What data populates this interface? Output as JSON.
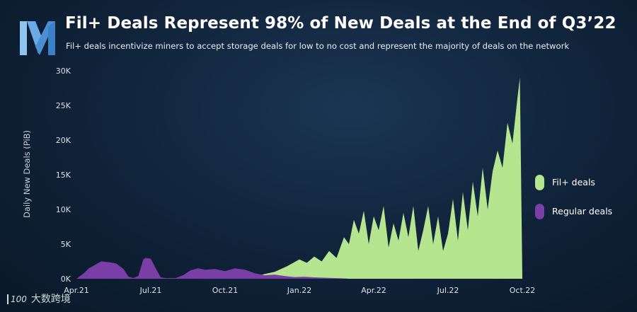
{
  "header": {
    "title": "Fil+ Deals Represent 98% of New Deals at the End of Q3’22",
    "subtitle": "Fil+ deals incentivize miners to accept storage deals for low to no cost and represent the majority of deals on the network"
  },
  "watermark": {
    "logo_text": "100",
    "text": "大数跨境"
  },
  "colors": {
    "fil_plus": "#b6e58f",
    "regular": "#7a3fa6",
    "logo_light": "#8fc4ef",
    "logo_dark": "#4a8fd3"
  },
  "chart_data": {
    "type": "area",
    "title": "Fil+ Deals Represent 98% of New Deals at the End of Q3’22",
    "subtitle": "Fil+ deals incentivize miners to accept storage deals for low to no cost and represent the majority of deals on the network",
    "xlabel": "",
    "ylabel": "Daily New Deals (PiB)",
    "ylim": [
      0,
      30000
    ],
    "yticks": [
      0,
      5000,
      10000,
      15000,
      20000,
      25000,
      30000
    ],
    "ytick_labels": [
      "0K",
      "5K",
      "10K",
      "15K",
      "20K",
      "25K",
      "30K"
    ],
    "xlim": [
      0,
      18
    ],
    "xticks": [
      0,
      3,
      6,
      9,
      12,
      15,
      18
    ],
    "xtick_labels": [
      "Apr.21",
      "Jul.21",
      "Oct.21",
      "Jan.22",
      "Apr.22",
      "Jul.22",
      "Oct.22"
    ],
    "x_unit": "months since Apr.21",
    "legend_position": "right",
    "series": [
      {
        "name": "Fil+ deals",
        "x": [
          0,
          5.5,
          6.5,
          7.5,
          8.0,
          8.5,
          9.0,
          9.3,
          9.6,
          9.9,
          10.2,
          10.5,
          10.8,
          11.0,
          11.2,
          11.4,
          11.6,
          11.8,
          12.0,
          12.2,
          12.4,
          12.6,
          12.8,
          13.0,
          13.2,
          13.4,
          13.6,
          13.8,
          14.0,
          14.2,
          14.4,
          14.6,
          14.8,
          15.0,
          15.2,
          15.4,
          15.6,
          15.8,
          16.0,
          16.2,
          16.4,
          16.6,
          16.8,
          17.0,
          17.2,
          17.4,
          17.6,
          17.8,
          17.9,
          18.0
        ],
        "values": [
          0,
          100,
          300,
          600,
          1000,
          1800,
          2800,
          2300,
          3200,
          2500,
          4000,
          3000,
          6000,
          5000,
          8500,
          6500,
          9800,
          5000,
          9000,
          7000,
          10500,
          4500,
          8000,
          5500,
          9500,
          6000,
          10500,
          4000,
          7000,
          10500,
          5000,
          9000,
          4000,
          6500,
          11500,
          5500,
          12500,
          7000,
          14000,
          9000,
          16000,
          10000,
          15500,
          18500,
          16000,
          22500,
          19500,
          26000,
          29000,
          0
        ],
        "color": "#b6e58f"
      },
      {
        "name": "Regular deals",
        "x": [
          0,
          0.3,
          0.5,
          0.8,
          1.0,
          1.3,
          1.6,
          1.9,
          2.1,
          2.3,
          2.5,
          2.7,
          2.8,
          3.0,
          3.2,
          3.4,
          3.6,
          3.8,
          4.0,
          4.3,
          4.6,
          4.9,
          5.2,
          5.6,
          6.0,
          6.4,
          6.8,
          7.2,
          7.6,
          8.0,
          8.4,
          8.8,
          9.2,
          9.6,
          10.0,
          10.4,
          10.8,
          11.0
        ],
        "values": [
          0,
          800,
          1500,
          2100,
          2500,
          2400,
          2200,
          1400,
          300,
          100,
          400,
          2800,
          3000,
          2900,
          1500,
          200,
          100,
          50,
          100,
          500,
          1200,
          1500,
          1300,
          1400,
          1100,
          1500,
          1300,
          800,
          500,
          600,
          400,
          250,
          300,
          200,
          150,
          100,
          50,
          0
        ],
        "color": "#7a3fa6"
      }
    ]
  }
}
